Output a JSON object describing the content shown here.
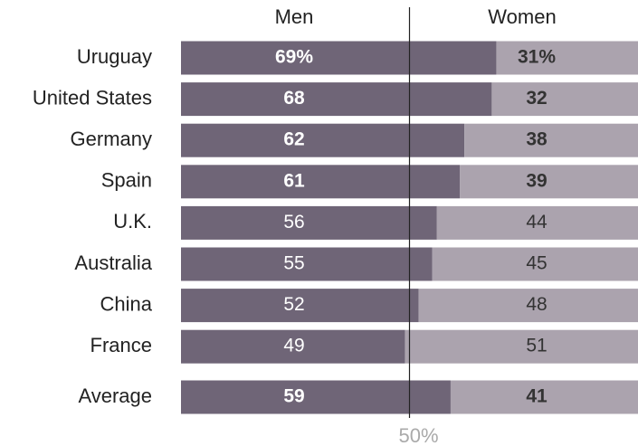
{
  "chart_data": {
    "type": "stacked-bar-100",
    "categories": [
      "Uruguay",
      "United States",
      "Germany",
      "Spain",
      "U.K.",
      "Australia",
      "China",
      "France",
      "Average"
    ],
    "series": [
      {
        "name": "Men",
        "color": "#6f6577",
        "values": [
          69,
          68,
          62,
          61,
          56,
          55,
          52,
          49,
          59
        ],
        "value_labels": [
          "69%",
          "68",
          "62",
          "61",
          "56",
          "55",
          "52",
          "49",
          "59"
        ]
      },
      {
        "name": "Women",
        "color": "#aba3ae",
        "values": [
          31,
          32,
          38,
          39,
          44,
          45,
          48,
          51,
          41
        ],
        "value_labels": [
          "31%",
          "32",
          "38",
          "39",
          "44",
          "45",
          "48",
          "51",
          "41"
        ]
      }
    ],
    "xlim": [
      0,
      100
    ],
    "reference_line": {
      "value": 50,
      "label": "50%"
    }
  }
}
